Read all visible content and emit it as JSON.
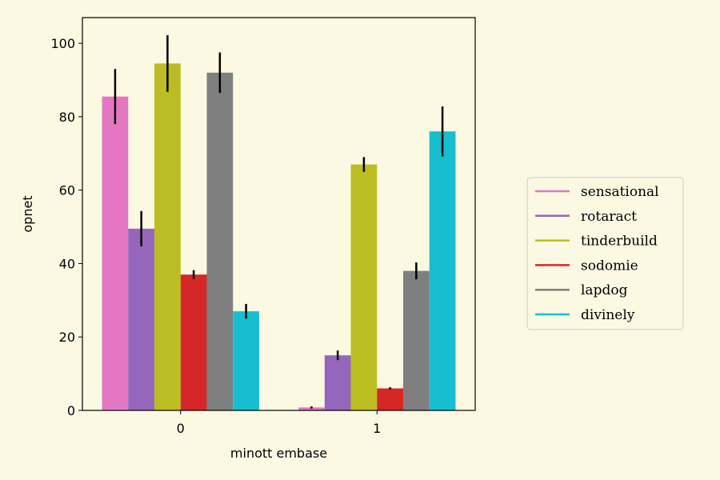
{
  "chart_data": {
    "type": "bar",
    "title": "",
    "xlabel": "minott embase",
    "ylabel": "opnet",
    "categories": [
      "0",
      "1"
    ],
    "ylim": [
      0,
      107
    ],
    "yticks": [
      0,
      20,
      40,
      60,
      80,
      100
    ],
    "legend_position": "right",
    "grid": false,
    "series": [
      {
        "name": "sensational",
        "color": "#e377c2",
        "values": [
          85.5,
          0.8
        ],
        "errors": [
          7.5,
          0.3
        ]
      },
      {
        "name": "rotaract",
        "color": "#9467bd",
        "values": [
          49.5,
          15.0
        ],
        "errors": [
          4.8,
          1.3
        ]
      },
      {
        "name": "tinderbuild",
        "color": "#bcbd22",
        "values": [
          94.5,
          67.0
        ],
        "errors": [
          7.7,
          2.0
        ]
      },
      {
        "name": "sodomie",
        "color": "#d62728",
        "values": [
          37.0,
          6.0
        ],
        "errors": [
          1.2,
          0.3
        ]
      },
      {
        "name": "lapdog",
        "color": "#7f7f7f",
        "values": [
          92.0,
          38.0
        ],
        "errors": [
          5.5,
          2.3
        ]
      },
      {
        "name": "divinely",
        "color": "#17becf",
        "values": [
          27.0,
          76.0
        ],
        "errors": [
          2.0,
          6.8
        ]
      }
    ]
  }
}
